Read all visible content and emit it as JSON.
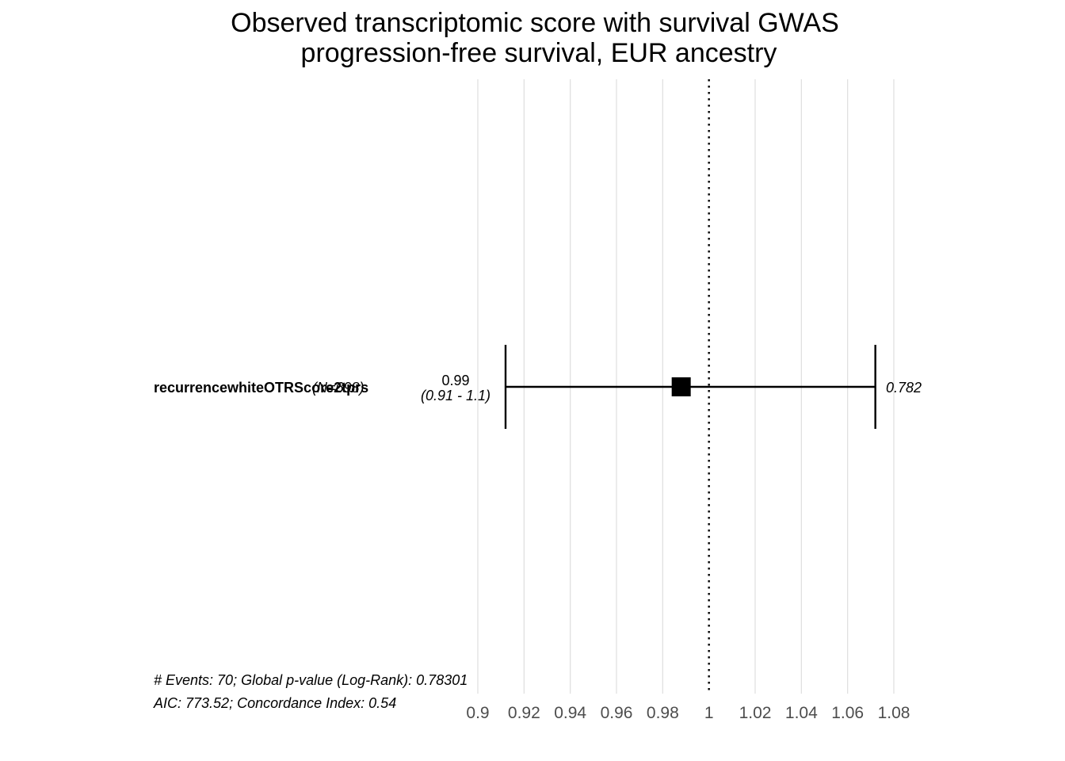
{
  "chart_data": {
    "type": "forest",
    "title_lines": [
      "Observed transcriptomic score with survival GWAS",
      "progression-free survival, EUR ancestry"
    ],
    "xlim": [
      0.9,
      1.08
    ],
    "x_ticks": [
      0.9,
      0.92,
      0.94,
      0.96,
      0.98,
      1,
      1.02,
      1.04,
      1.06,
      1.08
    ],
    "x_tick_labels": [
      "0.9",
      "0.92",
      "0.94",
      "0.96",
      "0.98",
      "1",
      "1.02",
      "1.04",
      "1.06",
      "1.08"
    ],
    "reference_line": 1,
    "grid": "vertical",
    "rows": [
      {
        "variable": "recurrencewhiteOTRScore2tprs",
        "n_label": "(N=698)",
        "hr": 0.988,
        "ci_low": 0.912,
        "ci_high": 1.072,
        "hr_label": "0.99",
        "ci_label": "(0.91 - 1.1)",
        "p_label": "0.782"
      }
    ],
    "footnotes": [
      "# Events: 70; Global p-value (Log-Rank): 0.78301",
      "AIC: 773.52; Concordance Index: 0.54"
    ]
  },
  "colors": {
    "background": "#ffffff",
    "grid": "#dedede",
    "ink": "#000000",
    "tick_text": "#4d4d4d"
  }
}
